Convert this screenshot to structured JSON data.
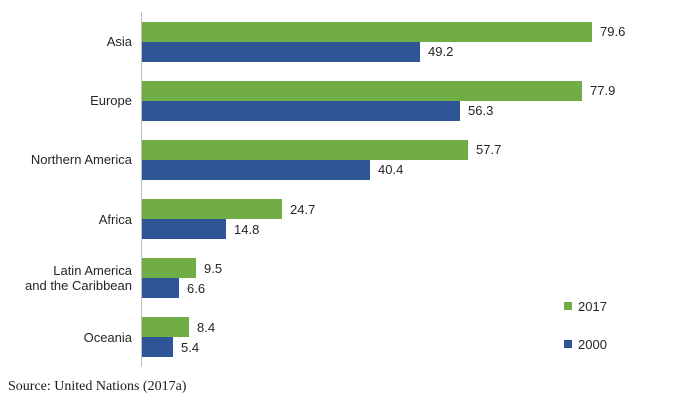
{
  "chart_data": {
    "type": "bar",
    "orientation": "horizontal",
    "title": "",
    "xlabel": "",
    "ylabel": "",
    "xlim": [
      0,
      94
    ],
    "grid": false,
    "data_labels": true,
    "legend_position": "right-bottom",
    "axis_color": "#bfbfbf",
    "categories": [
      "Asia",
      "Europe",
      "Northern America",
      "Africa",
      "Latin America\nand the Caribbean",
      "Oceania"
    ],
    "series": [
      {
        "name": "2017",
        "color": "#70AD47",
        "values": [
          79.6,
          77.9,
          57.7,
          24.7,
          9.5,
          8.4
        ]
      },
      {
        "name": "2000",
        "color": "#2F5597",
        "values": [
          49.2,
          56.3,
          40.4,
          14.8,
          6.6,
          5.4
        ]
      }
    ]
  },
  "source_note": "Source: United Nations (2017a)"
}
